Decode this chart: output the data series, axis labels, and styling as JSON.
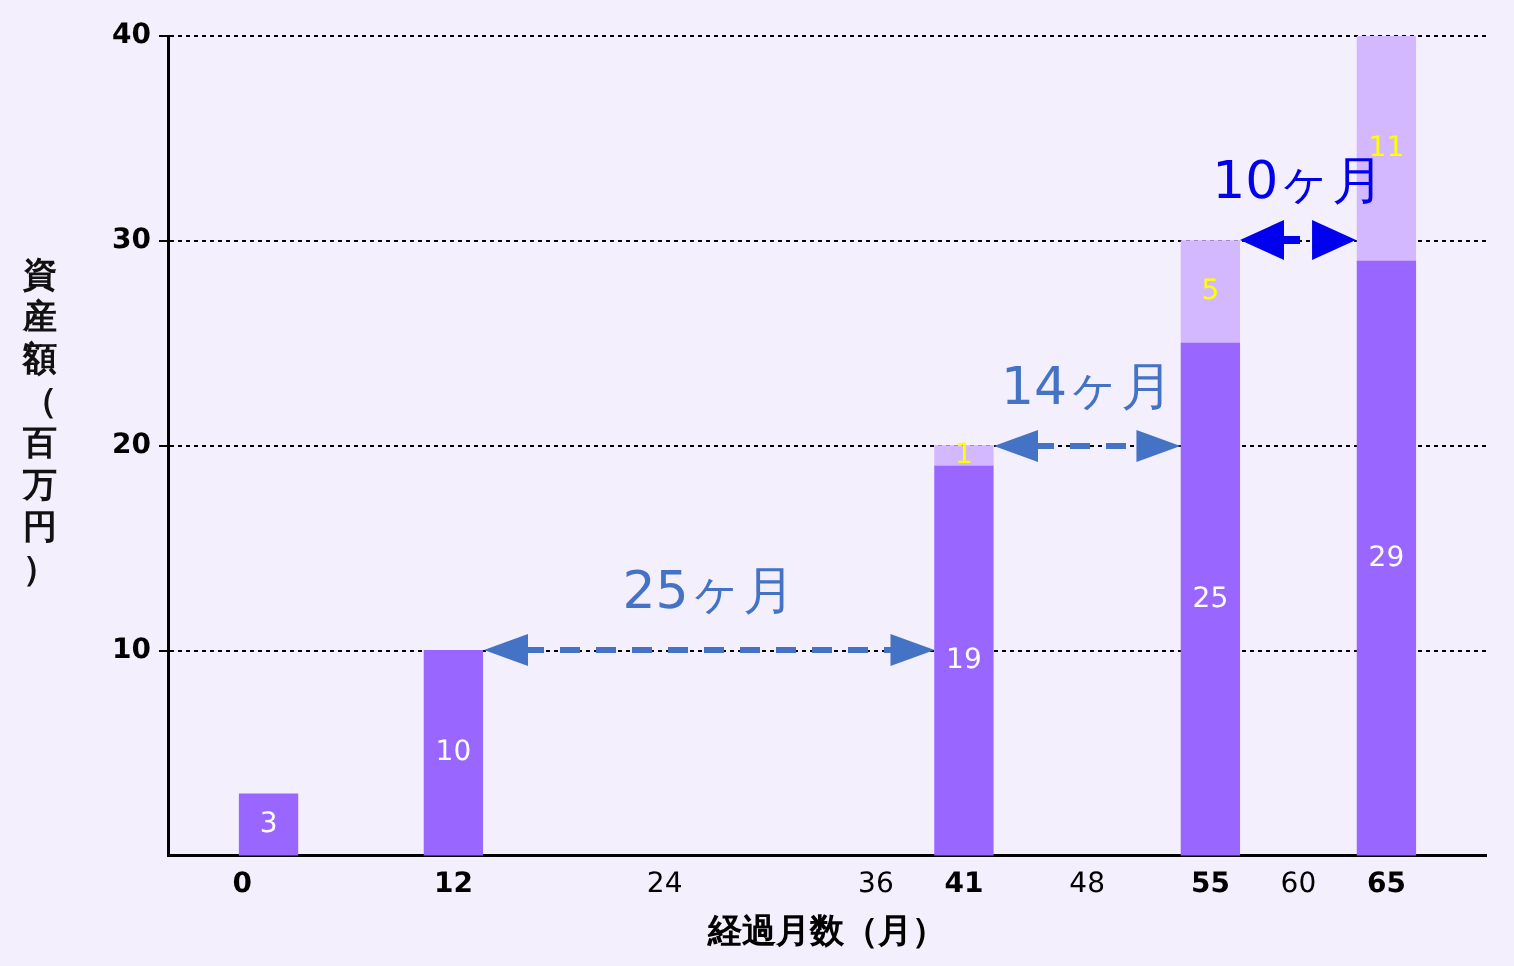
{
  "chart_data": {
    "type": "bar",
    "stacked": true,
    "xlabel": "経過月数（月）",
    "ylabel": "資産額（百万円）",
    "x": [
      1.5,
      12,
      41,
      55,
      65
    ],
    "series": [
      {
        "color": "#9966ff",
        "values": [
          3,
          10,
          19,
          25,
          29
        ]
      },
      {
        "color": "#d3b8ff",
        "values": [
          null,
          null,
          1,
          5,
          11
        ]
      }
    ],
    "xlim": [
      0,
      66.5
    ],
    "xticks": [
      0,
      12,
      24,
      36,
      41,
      48,
      55,
      60,
      65
    ],
    "ylim": [
      0,
      40
    ],
    "yticks": [
      10,
      20,
      30,
      40
    ],
    "grid": "y",
    "legend": false,
    "data_labels": true,
    "annotations": [
      "25ヶ月",
      "14ヶ月",
      "10ヶ月"
    ]
  }
}
